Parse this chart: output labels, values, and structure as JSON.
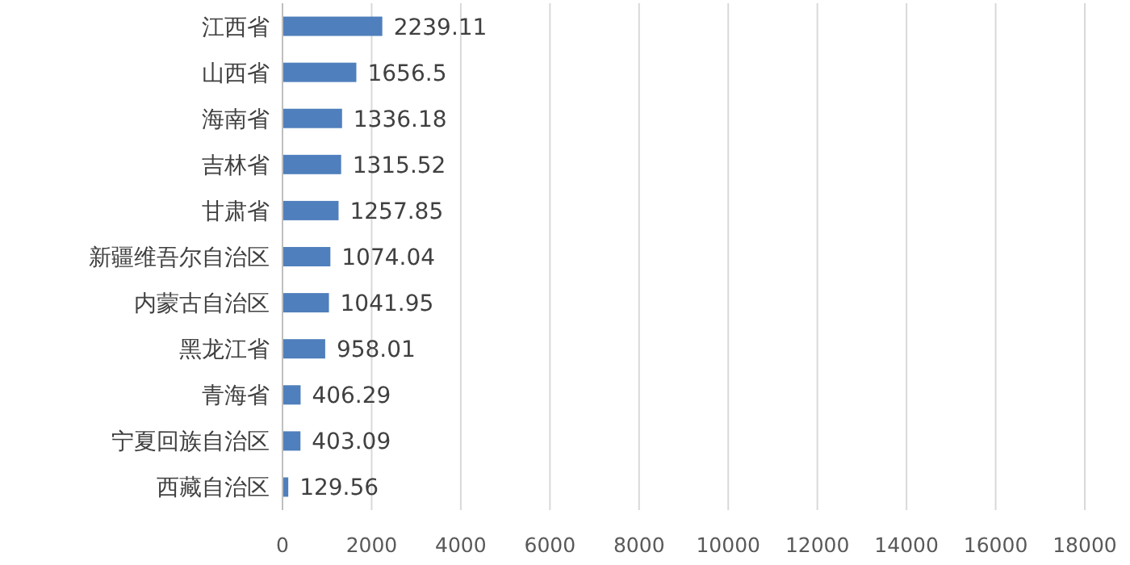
{
  "chart_data": {
    "type": "bar",
    "orientation": "horizontal",
    "categories": [
      "江西省",
      "山西省",
      "海南省",
      "吉林省",
      "甘肃省",
      "新疆维吾尔自治区",
      "内蒙古自治区",
      "黑龙江省",
      "青海省",
      "宁夏回族自治区",
      "西藏自治区"
    ],
    "values": [
      2239.11,
      1656.5,
      1336.18,
      1315.52,
      1257.85,
      1074.04,
      1041.95,
      958.01,
      406.29,
      403.09,
      129.56
    ],
    "color": "#4f7fbc",
    "data_labels": true,
    "xlim": [
      0,
      18000
    ],
    "xticks": [
      0,
      2000,
      4000,
      6000,
      8000,
      10000,
      12000,
      14000,
      16000,
      18000
    ],
    "grid": "x"
  }
}
